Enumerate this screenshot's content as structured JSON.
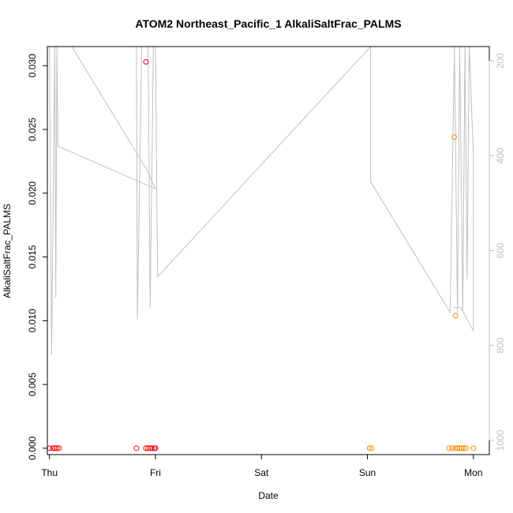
{
  "chart_data": {
    "type": "scatter",
    "title": "ATOM2 Northeast_Pacific_1 AlkaliSaltFrac_PALMS",
    "xlabel": "Date",
    "ylabel": "AlkaliSaltFrac_PALMS",
    "xlim": [
      -0.02,
      4.15
    ],
    "ylim": [
      -0.0005,
      0.0315
    ],
    "x_ticks": [
      {
        "label": "Thu",
        "value": 0
      },
      {
        "label": "Fri",
        "value": 1
      },
      {
        "label": "Sat",
        "value": 2
      },
      {
        "label": "Sun",
        "value": 3
      },
      {
        "label": "Mon",
        "value": 4
      }
    ],
    "y_ticks": [
      "0.000",
      "0.005",
      "0.010",
      "0.015",
      "0.020",
      "0.025",
      "0.030"
    ],
    "y_tick_values": [
      0,
      0.005,
      0.01,
      0.015,
      0.02,
      0.025,
      0.03
    ],
    "y2_ticks": [
      "200",
      "400",
      "600",
      "800",
      "1000"
    ],
    "y2_tick_values": [
      200,
      400,
      600,
      800,
      1000
    ],
    "y2lim": [
      1030,
      170
    ],
    "colors": {
      "series1": "#ff0000",
      "series2": "#ff8c00",
      "altitude": "#c0c0c0"
    },
    "series": [
      {
        "color": "#ff0000",
        "points": [
          [
            0.0,
            0
          ],
          [
            0.03,
            0
          ],
          [
            0.05,
            0
          ],
          [
            0.07,
            0
          ],
          [
            0.09,
            0
          ],
          [
            0.82,
            0
          ],
          [
            0.91,
            0
          ],
          [
            0.93,
            0
          ],
          [
            0.95,
            0
          ],
          [
            0.97,
            0.0
          ],
          [
            0.99,
            0
          ],
          [
            1.0,
            0
          ],
          [
            0.91,
            0.0303
          ]
        ]
      },
      {
        "color": "#ff8c00",
        "points": [
          [
            3.02,
            0
          ],
          [
            3.04,
            0
          ],
          [
            3.77,
            0
          ],
          [
            3.8,
            0
          ],
          [
            3.83,
            0
          ],
          [
            3.85,
            0
          ],
          [
            3.87,
            0
          ],
          [
            3.89,
            0
          ],
          [
            3.91,
            0
          ],
          [
            3.93,
            0
          ],
          [
            4.0,
            0
          ],
          [
            3.82,
            0.0244
          ],
          [
            3.83,
            0.0104
          ]
        ]
      }
    ],
    "altitude_series": {
      "points": [
        [
          0.0,
          170
        ],
        [
          0.02,
          820
        ],
        [
          0.05,
          170
        ],
        [
          0.06,
          700
        ],
        [
          0.07,
          170
        ],
        [
          0.08,
          380
        ],
        [
          1.0,
          470
        ],
        [
          0.92,
          430
        ],
        [
          0.21,
          170
        ],
        [
          0.82,
          170
        ],
        [
          0.83,
          745
        ],
        [
          0.87,
          170
        ],
        [
          0.93,
          170
        ],
        [
          0.95,
          720
        ],
        [
          0.98,
          170
        ],
        [
          1.0,
          170
        ],
        [
          1.02,
          655
        ],
        [
          3.03,
          170
        ],
        [
          3.03,
          455
        ],
        [
          3.78,
          730
        ],
        [
          3.79,
          600
        ],
        [
          3.82,
          170
        ],
        [
          3.85,
          730
        ],
        [
          3.87,
          170
        ],
        [
          3.9,
          730
        ],
        [
          3.92,
          170
        ],
        [
          3.94,
          660
        ],
        [
          3.96,
          170
        ],
        [
          4.0,
          400
        ],
        [
          4.0,
          770
        ],
        [
          3.88,
          720
        ],
        [
          3.81,
          720
        ]
      ]
    }
  }
}
